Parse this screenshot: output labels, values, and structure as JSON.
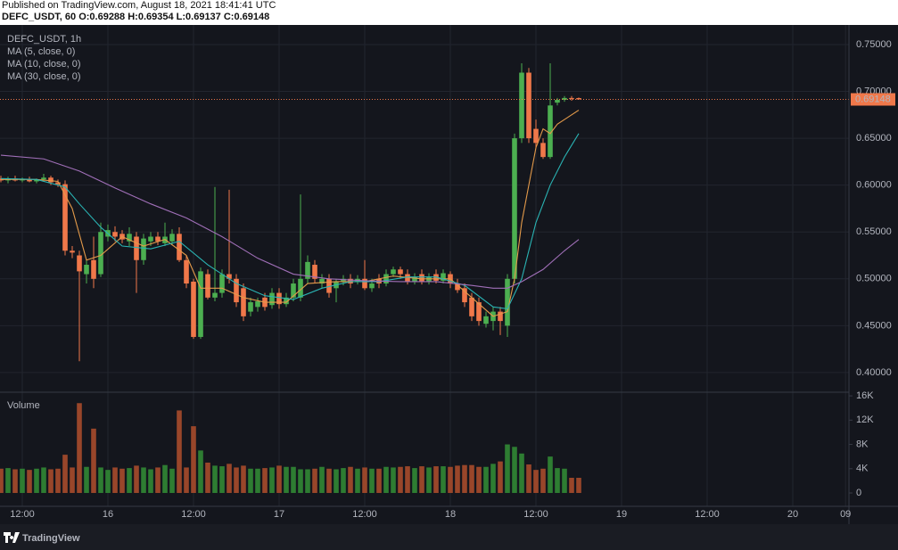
{
  "header": {
    "published": "Published on TradingView.com, August 18, 2021 18:41:41 UTC",
    "symbol_line": "DEFC_USDT, 60 O:0.69288 H:0.69354 L:0.69137 C:0.69148",
    "logo": "TradingView"
  },
  "chart_data": {
    "type": "candlestick",
    "title": "DEFC_USDT, 1h",
    "volume_label": "Volume",
    "up_color": "#4caf50",
    "down_color": "#f0784a",
    "volume_up_color": "#2e7d32",
    "volume_down_color": "#99462a",
    "x": [
      9,
      10,
      11,
      12,
      13,
      14,
      15,
      16,
      17,
      18,
      19,
      20,
      21,
      22,
      23,
      24,
      25,
      26,
      27,
      28,
      29,
      30,
      31,
      32,
      33,
      34,
      35,
      36,
      37,
      38,
      39,
      40,
      41,
      42,
      43,
      44,
      45,
      46,
      47,
      48,
      49,
      50,
      51,
      52,
      53,
      54,
      55,
      56,
      57,
      58,
      59,
      60,
      61,
      62,
      63,
      64,
      65,
      66,
      67,
      68,
      69,
      70,
      71,
      72,
      73,
      74,
      75,
      76,
      77,
      78,
      79,
      80,
      81,
      82,
      83,
      84,
      85,
      86,
      87,
      88,
      89,
      90
    ],
    "open": [
      0.607,
      0.605,
      0.607,
      0.605,
      0.606,
      0.604,
      0.606,
      0.608,
      0.603,
      0.601,
      0.53,
      0.525,
      0.505,
      0.52,
      0.505,
      0.545,
      0.55,
      0.548,
      0.54,
      0.545,
      0.52,
      0.54,
      0.545,
      0.538,
      0.54,
      0.548,
      0.52,
      0.497,
      0.438,
      0.505,
      0.48,
      0.485,
      0.505,
      0.5,
      0.49,
      0.465,
      0.47,
      0.48,
      0.472,
      0.485,
      0.473,
      0.48,
      0.48,
      0.5,
      0.515,
      0.495,
      0.5,
      0.49,
      0.497,
      0.5,
      0.497,
      0.5,
      0.49,
      0.5,
      0.495,
      0.505,
      0.51,
      0.505,
      0.497,
      0.505,
      0.497,
      0.505,
      0.498,
      0.505,
      0.495,
      0.49,
      0.48,
      0.475,
      0.452,
      0.455,
      0.465,
      0.45,
      0.5,
      0.65,
      0.72,
      0.66,
      0.645,
      0.63,
      0.688,
      0.691,
      0.693,
      0.69288
    ],
    "high": [
      0.61,
      0.609,
      0.61,
      0.608,
      0.609,
      0.607,
      0.612,
      0.61,
      0.606,
      0.605,
      0.535,
      0.53,
      0.52,
      0.545,
      0.56,
      0.558,
      0.556,
      0.552,
      0.555,
      0.55,
      0.548,
      0.55,
      0.55,
      0.56,
      0.553,
      0.555,
      0.525,
      0.5,
      0.512,
      0.51,
      0.598,
      0.51,
      0.595,
      0.505,
      0.495,
      0.48,
      0.48,
      0.485,
      0.49,
      0.49,
      0.485,
      0.5,
      0.59,
      0.525,
      0.52,
      0.505,
      0.505,
      0.5,
      0.504,
      0.505,
      0.504,
      0.52,
      0.5,
      0.505,
      0.51,
      0.513,
      0.513,
      0.51,
      0.506,
      0.51,
      0.506,
      0.51,
      0.51,
      0.508,
      0.5,
      0.495,
      0.485,
      0.48,
      0.465,
      0.47,
      0.47,
      0.505,
      0.655,
      0.73,
      0.725,
      0.67,
      0.65,
      0.73,
      0.693,
      0.695,
      0.695,
      0.69354
    ],
    "low": [
      0.603,
      0.602,
      0.604,
      0.603,
      0.603,
      0.602,
      0.604,
      0.6,
      0.598,
      0.525,
      0.522,
      0.412,
      0.495,
      0.49,
      0.502,
      0.54,
      0.54,
      0.538,
      0.535,
      0.485,
      0.515,
      0.535,
      0.536,
      0.535,
      0.536,
      0.518,
      0.49,
      0.436,
      0.436,
      0.478,
      0.476,
      0.48,
      0.495,
      0.47,
      0.455,
      0.46,
      0.465,
      0.466,
      0.468,
      0.468,
      0.47,
      0.476,
      0.476,
      0.495,
      0.496,
      0.49,
      0.48,
      0.475,
      0.493,
      0.49,
      0.494,
      0.488,
      0.486,
      0.49,
      0.492,
      0.502,
      0.5,
      0.494,
      0.494,
      0.494,
      0.494,
      0.495,
      0.495,
      0.49,
      0.485,
      0.47,
      0.455,
      0.45,
      0.448,
      0.445,
      0.44,
      0.438,
      0.495,
      0.645,
      0.645,
      0.64,
      0.628,
      0.628,
      0.685,
      0.689,
      0.69,
      0.69137
    ],
    "close": [
      0.605,
      0.607,
      0.605,
      0.606,
      0.604,
      0.606,
      0.608,
      0.603,
      0.601,
      0.53,
      0.528,
      0.508,
      0.515,
      0.5,
      0.55,
      0.552,
      0.545,
      0.542,
      0.548,
      0.52,
      0.543,
      0.545,
      0.54,
      0.545,
      0.548,
      0.52,
      0.495,
      0.438,
      0.508,
      0.48,
      0.485,
      0.505,
      0.5,
      0.475,
      0.46,
      0.475,
      0.476,
      0.47,
      0.485,
      0.473,
      0.48,
      0.495,
      0.5,
      0.518,
      0.5,
      0.5,
      0.485,
      0.497,
      0.5,
      0.495,
      0.5,
      0.49,
      0.495,
      0.495,
      0.505,
      0.51,
      0.505,
      0.497,
      0.502,
      0.497,
      0.502,
      0.498,
      0.506,
      0.495,
      0.488,
      0.475,
      0.46,
      0.455,
      0.46,
      0.465,
      0.455,
      0.5,
      0.65,
      0.72,
      0.65,
      0.645,
      0.63,
      0.685,
      0.691,
      0.693,
      0.692,
      0.69148
    ],
    "volume": [
      4000,
      4100,
      3900,
      4000,
      3800,
      4000,
      4200,
      3900,
      4000,
      6300,
      4200,
      14800,
      4300,
      10600,
      4200,
      3800,
      4200,
      4000,
      4100,
      4500,
      4200,
      3900,
      4200,
      4600,
      4000,
      13600,
      4200,
      11000,
      7000,
      5000,
      4500,
      4400,
      4800,
      4200,
      4500,
      4000,
      4000,
      4100,
      4200,
      4500,
      4300,
      4300,
      3900,
      3900,
      4000,
      4300,
      4000,
      3900,
      4100,
      4300,
      4000,
      4200,
      4000,
      4000,
      4300,
      4200,
      4300,
      4400,
      4100,
      4400,
      4200,
      4400,
      4400,
      4300,
      4500,
      4600,
      4600,
      4300,
      4300,
      4800,
      5200,
      8000,
      7600,
      6500,
      4700,
      3800,
      4000,
      6000,
      4100,
      4000,
      2500,
      2500
    ],
    "series": [
      {
        "name": "MA (5, close, 0)",
        "color": "#e39a4a",
        "x": [
          9,
          14,
          17,
          19,
          21,
          23,
          26,
          29,
          32,
          35,
          37,
          40,
          43,
          46,
          49,
          52,
          56,
          60,
          64,
          68,
          72,
          75,
          78,
          80,
          81,
          82,
          83,
          84,
          85,
          86,
          87,
          88,
          89,
          90
        ],
        "values": [
          0.606,
          0.606,
          0.604,
          0.575,
          0.52,
          0.525,
          0.545,
          0.535,
          0.542,
          0.525,
          0.49,
          0.49,
          0.48,
          0.475,
          0.475,
          0.495,
          0.497,
          0.497,
          0.503,
          0.5,
          0.5,
          0.48,
          0.46,
          0.465,
          0.5,
          0.56,
          0.6,
          0.64,
          0.66,
          0.655,
          0.665,
          0.67,
          0.675,
          0.68
        ]
      },
      {
        "name": "MA (10, close, 0)",
        "color": "#2ab3b3",
        "x": [
          9,
          14,
          18,
          20,
          23,
          26,
          30,
          34,
          38,
          42,
          46,
          50,
          54,
          58,
          62,
          66,
          70,
          74,
          78,
          80,
          82,
          84,
          86,
          88,
          90
        ],
        "values": [
          0.607,
          0.606,
          0.598,
          0.58,
          0.555,
          0.535,
          0.532,
          0.54,
          0.515,
          0.495,
          0.482,
          0.478,
          0.49,
          0.497,
          0.497,
          0.502,
          0.502,
          0.493,
          0.47,
          0.468,
          0.5,
          0.56,
          0.6,
          0.63,
          0.655
        ]
      },
      {
        "name": "MA (30, close, 0)",
        "color": "#a06fb8",
        "x": [
          9,
          15,
          20,
          25,
          30,
          35,
          40,
          45,
          50,
          55,
          60,
          65,
          70,
          75,
          78,
          80,
          82,
          85,
          88,
          90
        ],
        "values": [
          0.632,
          0.628,
          0.615,
          0.597,
          0.58,
          0.565,
          0.545,
          0.522,
          0.505,
          0.5,
          0.498,
          0.497,
          0.497,
          0.493,
          0.49,
          0.49,
          0.497,
          0.51,
          0.53,
          0.542
        ]
      }
    ],
    "xlim": [
      8.875,
      127.875
    ],
    "xticks": [
      {
        "value": 12,
        "label": "12:00"
      },
      {
        "value": 24,
        "label": "16"
      },
      {
        "value": 36,
        "label": "12:00"
      },
      {
        "value": 48,
        "label": "17"
      },
      {
        "value": 60,
        "label": "12:00"
      },
      {
        "value": 72,
        "label": "18"
      },
      {
        "value": 84,
        "label": "12:00"
      },
      {
        "value": 96,
        "label": "19"
      },
      {
        "value": 108,
        "label": "12:00"
      },
      {
        "value": 120,
        "label": "20"
      },
      {
        "value": 127.4,
        "label": "09"
      }
    ],
    "ylim": [
      0.379,
      0.769
    ],
    "yticks": [
      {
        "value": 0.75,
        "label": "0.75000"
      },
      {
        "value": 0.7,
        "label": "0.70000"
      },
      {
        "value": 0.65,
        "label": "0.65000"
      },
      {
        "value": 0.6,
        "label": "0.60000"
      },
      {
        "value": 0.55,
        "label": "0.55000"
      },
      {
        "value": 0.5,
        "label": "0.50000"
      },
      {
        "value": 0.45,
        "label": "0.45000"
      },
      {
        "value": 0.4,
        "label": "0.40000"
      }
    ],
    "volume_ylim": [
      -2200,
      16600
    ],
    "volume_yticks": [
      {
        "value": 16000,
        "label": "16K"
      },
      {
        "value": 12000,
        "label": "12K"
      },
      {
        "value": 8000,
        "label": "8K"
      },
      {
        "value": 4000,
        "label": "4K"
      },
      0
    ],
    "grid": true
  }
}
